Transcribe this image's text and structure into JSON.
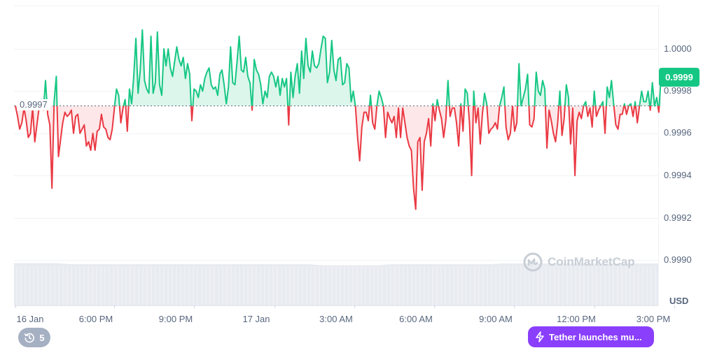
{
  "chart_data": {
    "type": "line",
    "title": "",
    "xlabel": "",
    "ylabel": "USD",
    "ylim": [
      0.9989,
      1.00022
    ],
    "y_ticks": [
      "1.0000",
      "0.9998",
      "0.9996",
      "0.9994",
      "0.9992",
      "0.9990"
    ],
    "x_ticks": [
      "16 Jan",
      "6:00 PM",
      "9:00 PM",
      "17 Jan",
      "3:00 AM",
      "6:00 AM",
      "9:00 AM",
      "12:00 PM",
      "3:00 PM"
    ],
    "x_tick_hours": [
      14.3,
      18,
      21,
      24,
      27,
      30,
      33,
      36,
      39
    ],
    "x_range_hours": [
      14.3,
      38.5
    ],
    "reference_price": 0.99973,
    "reference_label": "0.9997",
    "current_price_label": "0.9999",
    "baseline_style": "above reference green, below reference red",
    "colors": {
      "up": "#16c784",
      "down": "#ea3943",
      "up_fill": "#d6f5e8",
      "down_fill": "#fde3e4",
      "volume": "#e8ebf0"
    },
    "series": [
      {
        "values": [
          0.99973,
          0.99968,
          0.99962,
          0.99965,
          0.99972,
          0.99966,
          0.99958,
          0.9996,
          0.99972,
          0.99956,
          0.99964,
          0.99972,
          0.99976,
          0.99971,
          0.99985,
          0.99969,
          0.99964,
          0.99934,
          0.99975,
          0.99987,
          0.99949,
          0.99957,
          0.99965,
          0.9997,
          0.99968,
          0.99969,
          0.99971,
          0.9996,
          0.99968,
          0.99969,
          0.9996,
          0.99962,
          0.99964,
          0.99954,
          0.99956,
          0.99952,
          0.9996,
          0.99952,
          0.99961,
          0.99962,
          0.99969,
          0.99963,
          0.99962,
          0.99958,
          0.99957,
          0.99962,
          0.99972,
          0.99981,
          0.99978,
          0.99965,
          0.99972,
          0.99976,
          0.99961,
          0.99981,
          0.99974,
          0.99987,
          1.00005,
          0.99979,
          0.9999,
          1.00009,
          0.99985,
          0.99981,
          0.99979,
          1.00006,
          0.99979,
          0.99984,
          1.00008,
          0.99983,
          0.99978,
          1.0,
          0.99992,
          1.0,
          0.99991,
          0.99987,
          0.99994,
          1.00001,
          0.99995,
          0.99992,
          0.99996,
          0.99986,
          0.99993,
          0.99988,
          0.99966,
          0.99981,
          0.9998,
          0.99977,
          0.99983,
          0.9998,
          0.99986,
          0.99989,
          0.99991,
          0.99983,
          0.99981,
          0.99982,
          0.99978,
          0.99988,
          0.9999,
          0.99983,
          0.99974,
          0.99982,
          1.00001,
          0.99984,
          0.99983,
          0.99994,
          1.00006,
          0.9999,
          0.99989,
          0.99996,
          0.99987,
          0.99984,
          0.99971,
          0.99995,
          0.9999,
          0.99988,
          0.99983,
          0.99974,
          0.9998,
          0.99977,
          0.99987,
          0.99989,
          0.99987,
          0.99982,
          0.99987,
          0.99978,
          0.99986,
          0.99982,
          0.99986,
          0.99964,
          0.99989,
          0.99977,
          0.99987,
          0.99993,
          0.99979,
          0.99999,
          0.99986,
          1.00005,
          0.99992,
          0.99989,
          0.99999,
          0.99992,
          0.99991,
          0.99993,
          1.0,
          1.00006,
          1.00005,
          0.99984,
          0.99989,
          1.00004,
          0.9999,
          0.99985,
          0.99995,
          0.99996,
          0.99983,
          0.99984,
          0.99993,
          0.99991,
          0.99975,
          0.9998,
          0.99973,
          0.99958,
          0.99947,
          0.99963,
          0.9997,
          0.9997,
          0.99966,
          0.99978,
          0.99965,
          0.99962,
          0.99973,
          0.9998,
          0.99977,
          0.99973,
          0.99958,
          0.9997,
          0.99967,
          0.99965,
          0.99968,
          0.99958,
          0.99972,
          0.99958,
          0.99972,
          0.99965,
          0.99958,
          0.99954,
          0.99952,
          0.99934,
          0.99924,
          0.99956,
          0.99958,
          0.99933,
          0.99956,
          0.9996,
          0.99967,
          0.99954,
          0.99974,
          0.99966,
          0.99976,
          0.99971,
          0.99967,
          0.99958,
          0.99966,
          0.99985,
          0.99968,
          0.99972,
          0.99972,
          0.99965,
          0.99954,
          0.99974,
          0.99961,
          0.99981,
          0.99979,
          0.99965,
          0.9994,
          0.9998,
          0.99965,
          0.99972,
          0.99955,
          0.99969,
          0.99979,
          0.99974,
          0.9996,
          0.99962,
          0.99963,
          0.99965,
          0.99962,
          0.99973,
          0.99977,
          0.99982,
          0.99963,
          0.99957,
          0.9996,
          0.99973,
          0.99961,
          0.99965,
          0.99993,
          0.99973,
          0.99977,
          0.99981,
          0.99988,
          0.99964,
          0.99963,
          0.99967,
          0.99989,
          0.9998,
          0.99978,
          0.99985,
          0.99981,
          0.99953,
          0.99971,
          0.99966,
          0.9996,
          0.99956,
          0.99965,
          0.9998,
          0.99959,
          0.99967,
          0.99983,
          0.99977,
          0.99955,
          0.99972,
          0.9994,
          0.99966,
          0.9997,
          0.99967,
          0.99973,
          0.99975,
          0.99968,
          0.99972,
          0.99963,
          0.9998,
          0.99968,
          0.99971,
          0.99973,
          0.99975,
          0.9996,
          0.99982,
          0.99977,
          0.99985,
          0.99974,
          0.99964,
          0.99962,
          0.99969,
          0.99969,
          0.99974,
          0.99969,
          0.99973,
          0.99974,
          0.99968,
          0.99975,
          0.99965,
          0.99973,
          0.9998,
          0.99975,
          0.99975,
          0.9998,
          0.99971,
          0.99984,
          0.99973,
          0.99977,
          0.9997,
          0.99987
        ]
      }
    ]
  },
  "axis": {
    "currency_label": "USD"
  },
  "watermark": {
    "text": "CoinMarketCap",
    "icon": "coinmarketcap-logo"
  },
  "events_button": {
    "icon": "history-clock-icon",
    "count": "5"
  },
  "news_button": {
    "icon": "lightning-bolt-icon",
    "label": "Tether launches mu..."
  }
}
